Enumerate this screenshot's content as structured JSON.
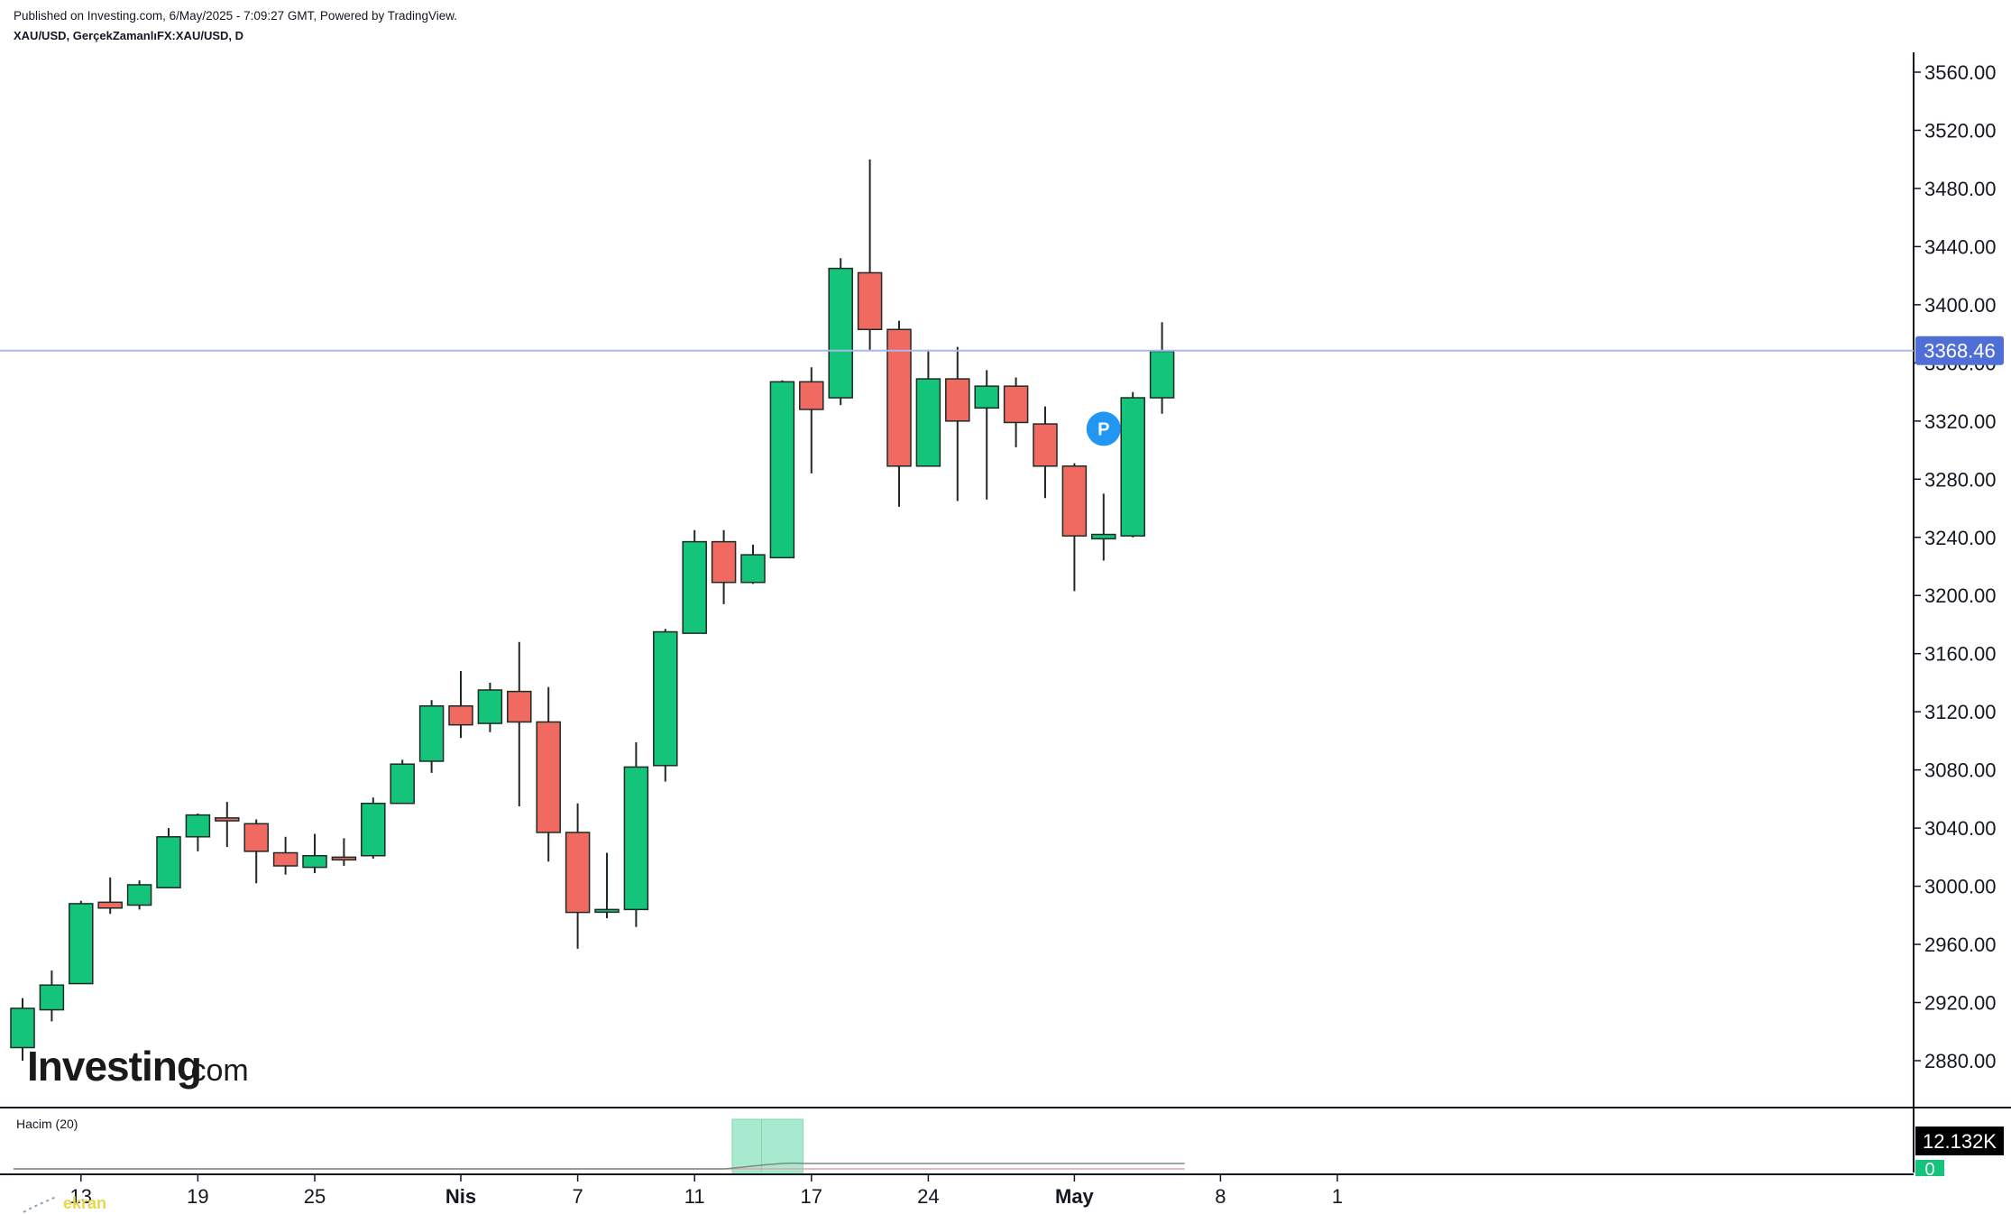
{
  "header": {
    "published": "Published on Investing.com, 6/May/2025 - 7:09:27 GMT, Powered by TradingView.",
    "symbol": "XAU/USD, GerçekZamanlıFX:XAU/USD, D"
  },
  "logo": {
    "brand": "Investing",
    "suffix": ".com"
  },
  "price_tag": "3368.46",
  "volume_panel": {
    "label": "Hacim (20)",
    "value_tag": "12.132K",
    "zero_tag": "0"
  },
  "colors": {
    "up": "#13c47a",
    "down": "#f06a62",
    "price_line": "#aab8f0",
    "price_tag": "#4f6fd6",
    "marker": "#2196f3"
  },
  "marker": {
    "label": "P",
    "icon": "publication-marker"
  },
  "watermark": "ekran",
  "chart_data": {
    "type": "candlestick",
    "title": "XAU/USD",
    "y_ticks": [
      "3560.00",
      "3520.00",
      "3480.00",
      "3440.00",
      "3400.00",
      "3360.00",
      "3320.00",
      "3280.00",
      "3240.00",
      "3200.00",
      "3160.00",
      "3120.00",
      "3080.00",
      "3040.00",
      "3000.00",
      "2960.00",
      "2920.00",
      "2880.00"
    ],
    "ylim": [
      2852,
      3575
    ],
    "x_labels": [
      {
        "label": "13",
        "index": 2,
        "bold": false
      },
      {
        "label": "19",
        "index": 6,
        "bold": false
      },
      {
        "label": "25",
        "index": 10,
        "bold": false
      },
      {
        "label": "Nis",
        "index": 15,
        "bold": true
      },
      {
        "label": "7",
        "index": 19,
        "bold": false
      },
      {
        "label": "11",
        "index": 23,
        "bold": false
      },
      {
        "label": "17",
        "index": 27,
        "bold": false
      },
      {
        "label": "24",
        "index": 31,
        "bold": false
      },
      {
        "label": "May",
        "index": 36,
        "bold": true
      },
      {
        "label": "8",
        "index": 41,
        "bold": false
      },
      {
        "label": "1",
        "index": 45,
        "bold": false
      }
    ],
    "candles": [
      {
        "o": 2889,
        "h": 2923,
        "l": 2880,
        "c": 2916
      },
      {
        "o": 2915,
        "h": 2942,
        "l": 2907,
        "c": 2932
      },
      {
        "o": 2933,
        "h": 2990,
        "l": 2933,
        "c": 2988
      },
      {
        "o": 2989,
        "h": 3006,
        "l": 2981,
        "c": 2985
      },
      {
        "o": 2987,
        "h": 3004,
        "l": 2984,
        "c": 3001
      },
      {
        "o": 2999,
        "h": 3040,
        "l": 2999,
        "c": 3034
      },
      {
        "o": 3034,
        "h": 3050,
        "l": 3024,
        "c": 3049
      },
      {
        "o": 3047,
        "h": 3058,
        "l": 3027,
        "c": 3045
      },
      {
        "o": 3043,
        "h": 3046,
        "l": 3002,
        "c": 3024
      },
      {
        "o": 3023,
        "h": 3034,
        "l": 3008,
        "c": 3014
      },
      {
        "o": 3013,
        "h": 3036,
        "l": 3009,
        "c": 3021
      },
      {
        "o": 3020,
        "h": 3033,
        "l": 3014,
        "c": 3019
      },
      {
        "o": 3021,
        "h": 3061,
        "l": 3019,
        "c": 3057
      },
      {
        "o": 3057,
        "h": 3087,
        "l": 3057,
        "c": 3084
      },
      {
        "o": 3086,
        "h": 3128,
        "l": 3078,
        "c": 3124
      },
      {
        "o": 3124,
        "h": 3148,
        "l": 3102,
        "c": 3111
      },
      {
        "o": 3112,
        "h": 3140,
        "l": 3106,
        "c": 3135
      },
      {
        "o": 3134,
        "h": 3168,
        "l": 3055,
        "c": 3113
      },
      {
        "o": 3113,
        "h": 3137,
        "l": 3017,
        "c": 3037
      },
      {
        "o": 3037,
        "h": 3057,
        "l": 2957,
        "c": 2982
      },
      {
        "o": 2984,
        "h": 3023,
        "l": 2978,
        "c": 2984
      },
      {
        "o": 2984,
        "h": 3099,
        "l": 2972,
        "c": 3082
      },
      {
        "o": 3083,
        "h": 3177,
        "l": 3072,
        "c": 3175
      },
      {
        "o": 3174,
        "h": 3245,
        "l": 3174,
        "c": 3237
      },
      {
        "o": 3237,
        "h": 3245,
        "l": 3194,
        "c": 3209
      },
      {
        "o": 3209,
        "h": 3235,
        "l": 3208,
        "c": 3228
      },
      {
        "o": 3226,
        "h": 3348,
        "l": 3226,
        "c": 3347
      },
      {
        "o": 3347,
        "h": 3357,
        "l": 3284,
        "c": 3328
      },
      {
        "o": 3336,
        "h": 3432,
        "l": 3331,
        "c": 3425
      },
      {
        "o": 3422,
        "h": 3500,
        "l": 3369,
        "c": 3383
      },
      {
        "o": 3383,
        "h": 3389,
        "l": 3261,
        "c": 3289
      },
      {
        "o": 3289,
        "h": 3369,
        "l": 3289,
        "c": 3349
      },
      {
        "o": 3349,
        "h": 3371,
        "l": 3265,
        "c": 3320
      },
      {
        "o": 3329,
        "h": 3355,
        "l": 3266,
        "c": 3344
      },
      {
        "o": 3344,
        "h": 3350,
        "l": 3302,
        "c": 3319
      },
      {
        "o": 3318,
        "h": 3330,
        "l": 3267,
        "c": 3289
      },
      {
        "o": 3289,
        "h": 3291,
        "l": 3203,
        "c": 3241
      },
      {
        "o": 3239,
        "h": 3270,
        "l": 3224,
        "c": 3242
      },
      {
        "o": 3241,
        "h": 3340,
        "l": 3240,
        "c": 3336
      },
      {
        "o": 3336,
        "h": 3388,
        "l": 3325,
        "c": 3368
      }
    ],
    "volume": {
      "highlight_index": [
        25,
        26
      ],
      "current": "12.132K"
    }
  }
}
